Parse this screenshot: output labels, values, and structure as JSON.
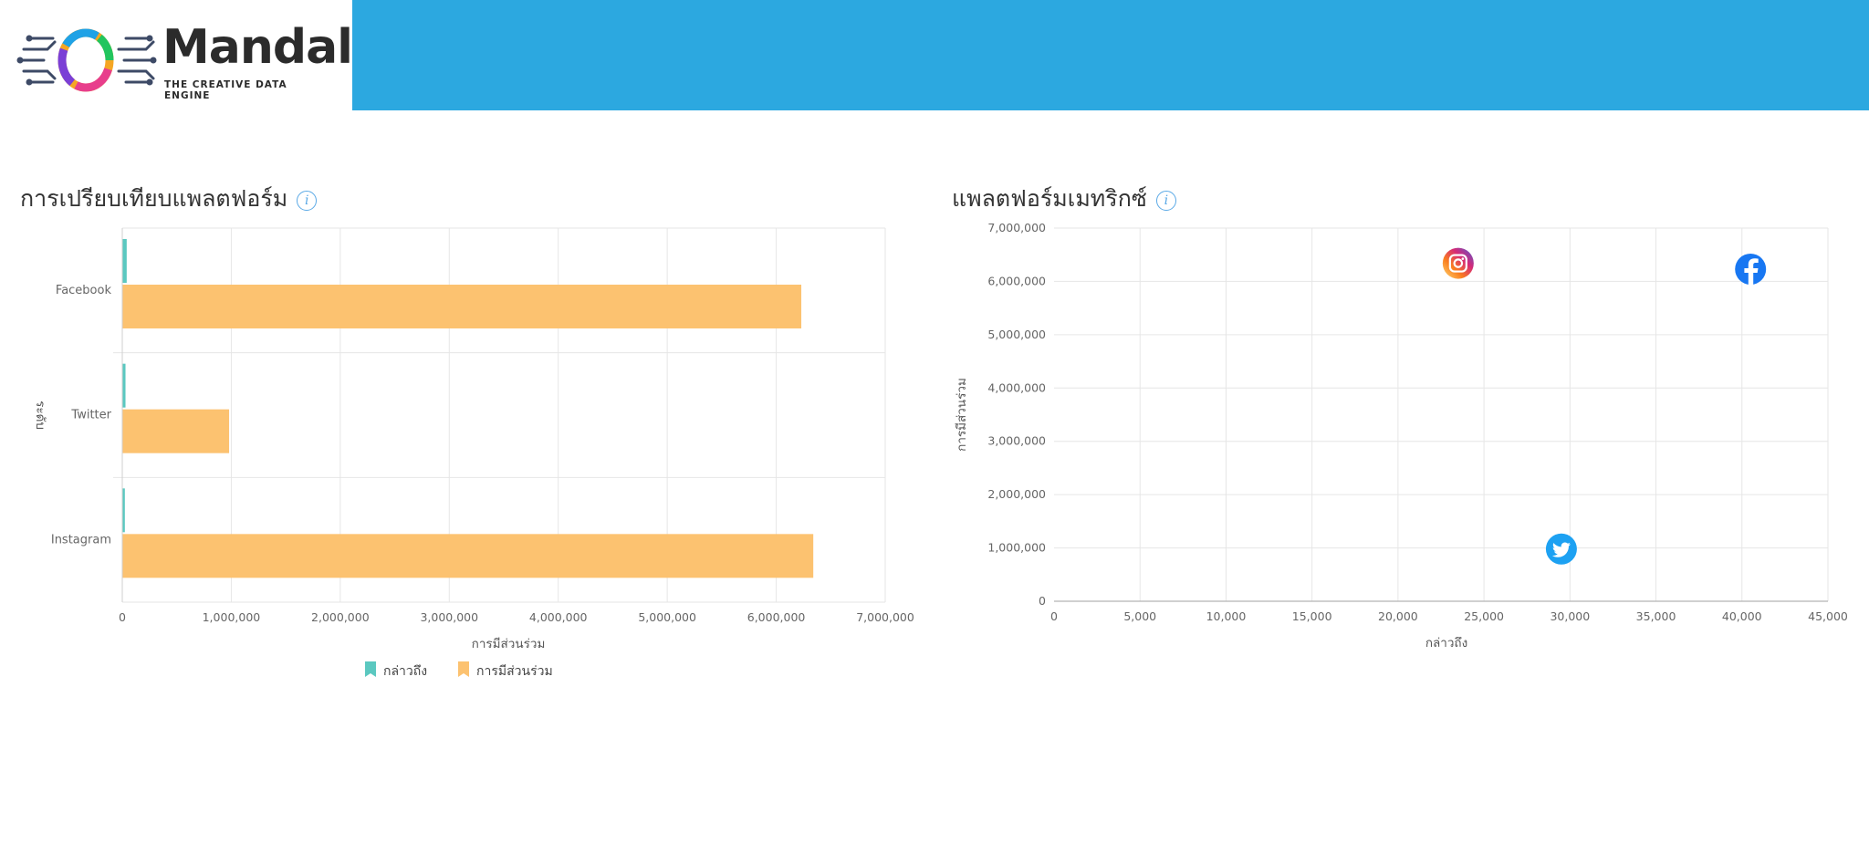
{
  "header": {
    "logo_word": "Mandala",
    "logo_tagline": "THE CREATIVE DATA ENGINE",
    "bar_color": "#2ca8e0"
  },
  "panels": [
    {
      "title": "การเปรียบเทียบแพลตฟอร์ม",
      "info_icon": "info-icon"
    },
    {
      "title": "แพลตฟอร์มเมทริกซ์",
      "info_icon": "info-icon"
    }
  ],
  "chart_data": [
    {
      "type": "bar",
      "orientation": "horizontal",
      "categories": [
        "Facebook",
        "Twitter",
        "Instagram"
      ],
      "series": [
        {
          "name": "กล่าวถึง",
          "color": "#5bc8c0",
          "values": [
            40500,
            29500,
            23500
          ]
        },
        {
          "name": "การมีส่วนร่วม",
          "color": "#fcc270",
          "values": [
            6230000,
            980000,
            6340000
          ]
        }
      ],
      "xlabel": "การมีส่วนร่วม",
      "ylabel": "ระดับ",
      "xlim": [
        0,
        7000000
      ],
      "xticks": [
        "0",
        "1,000,000",
        "2,000,000",
        "3,000,000",
        "4,000,000",
        "5,000,000",
        "6,000,000",
        "7,000,000"
      ],
      "grid": true,
      "legend": "bottom"
    },
    {
      "type": "scatter",
      "points": [
        {
          "label": "Instagram",
          "icon": "instagram-icon",
          "x": 23500,
          "y": 6340000
        },
        {
          "label": "Facebook",
          "icon": "facebook-icon",
          "x": 40500,
          "y": 6230000
        },
        {
          "label": "Twitter",
          "icon": "twitter-icon",
          "x": 29500,
          "y": 980000
        }
      ],
      "xlabel": "กล่าวถึง",
      "ylabel": "การมีส่วนร่วม",
      "xlim": [
        0,
        45000
      ],
      "ylim": [
        0,
        7000000
      ],
      "xticks": [
        "0",
        "5,000",
        "10,000",
        "15,000",
        "20,000",
        "25,000",
        "30,000",
        "35,000",
        "40,000",
        "45,000"
      ],
      "yticks": [
        "0",
        "1,000,000",
        "2,000,000",
        "3,000,000",
        "4,000,000",
        "5,000,000",
        "6,000,000",
        "7,000,000"
      ],
      "grid": true
    }
  ]
}
